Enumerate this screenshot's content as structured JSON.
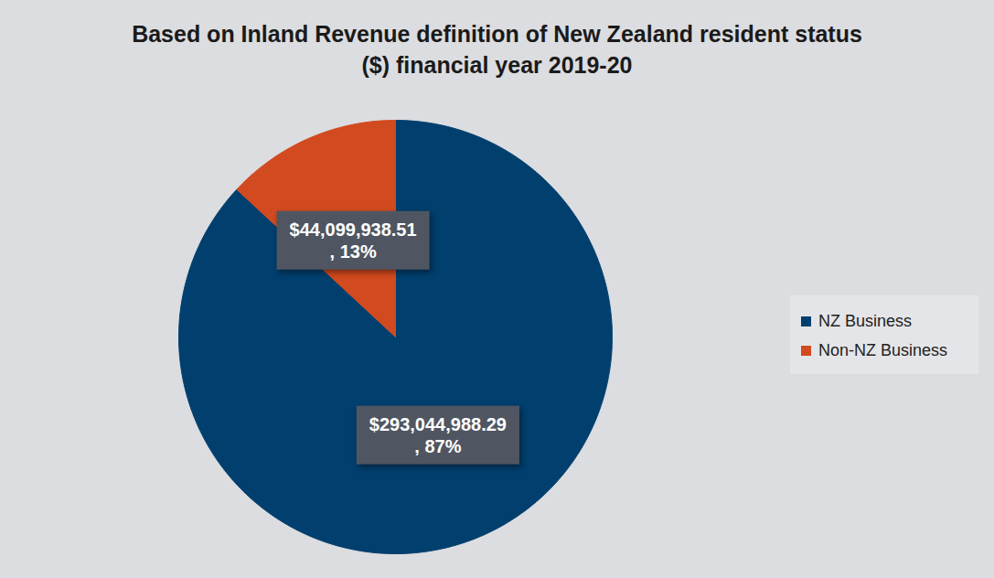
{
  "chart_data": {
    "type": "pie",
    "title": "Based on Inland Revenue definition of New Zealand resident status ($) financial year 2019-20",
    "categories": [
      "NZ Business",
      "Non-NZ Business"
    ],
    "values": [
      293044988.29,
      44099938.51
    ],
    "value_labels": [
      "$293,044,988.29 , 87%",
      "$44,099,938.51 , 13%"
    ],
    "colors": [
      "#003f6e",
      "#d24a1f"
    ],
    "data_labels": true,
    "legend": "right"
  }
}
